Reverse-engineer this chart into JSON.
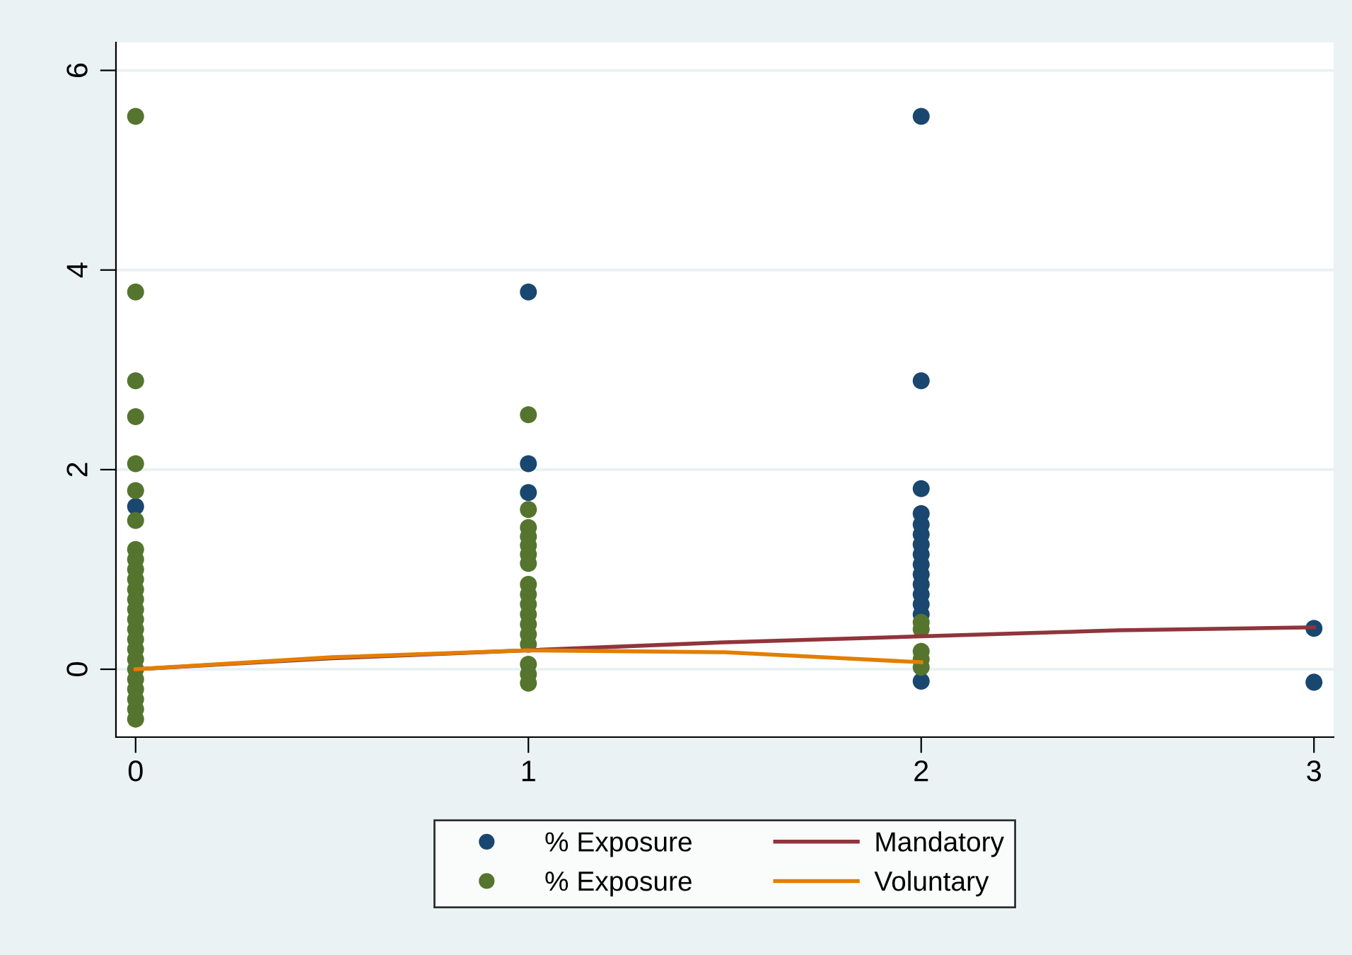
{
  "chart_data": {
    "type": "scatter",
    "xlim": [
      -0.05,
      3.05
    ],
    "ylim": [
      -0.68,
      6.28
    ],
    "xticks": [
      0,
      1,
      2,
      3
    ],
    "yticks": [
      0,
      2,
      4,
      6
    ],
    "grid": "y",
    "legend": "bottom",
    "series": [
      {
        "name": "% Exposure",
        "color": "#1a476f",
        "marker": "circle",
        "x": [
          0,
          1,
          1,
          1,
          2,
          2,
          2,
          2,
          2,
          2,
          2,
          2,
          2,
          2,
          2,
          2,
          2,
          2,
          2,
          3,
          3
        ],
        "values": [
          1.63,
          3.78,
          2.06,
          1.77,
          5.54,
          2.89,
          1.81,
          1.56,
          1.45,
          1.35,
          1.25,
          1.15,
          1.05,
          0.95,
          0.85,
          0.75,
          0.65,
          0.55,
          -0.12,
          0.41,
          -0.13
        ]
      },
      {
        "name": "% Exposure",
        "color": "#55752f",
        "marker": "circle",
        "x": [
          0,
          0,
          0,
          0,
          0,
          0,
          0,
          0,
          0,
          0,
          0,
          0,
          0,
          0,
          0,
          0,
          0,
          0,
          0,
          0,
          0,
          0,
          0,
          0,
          0,
          1,
          1,
          1,
          1,
          1,
          1,
          1,
          1,
          1,
          1,
          1,
          1,
          1,
          1,
          1,
          1,
          1,
          2,
          2,
          2,
          2,
          2
        ],
        "values": [
          5.54,
          3.78,
          2.89,
          2.53,
          2.06,
          1.79,
          1.49,
          1.2,
          1.1,
          1.0,
          0.9,
          0.8,
          0.7,
          0.6,
          0.5,
          0.4,
          0.3,
          0.2,
          0.1,
          0.0,
          -0.1,
          -0.2,
          -0.3,
          -0.4,
          -0.5,
          2.55,
          1.6,
          1.42,
          1.33,
          1.24,
          1.15,
          1.06,
          0.85,
          0.75,
          0.65,
          0.55,
          0.45,
          0.35,
          0.25,
          0.05,
          -0.05,
          -0.14,
          0.47,
          0.4,
          0.18,
          0.1,
          0.02
        ]
      },
      {
        "name": "Mandatory",
        "type": "line",
        "color": "#90353b",
        "x": [
          0,
          0.5,
          1,
          1.5,
          2,
          2.5,
          3
        ],
        "values": [
          0.0,
          0.11,
          0.19,
          0.27,
          0.33,
          0.39,
          0.42
        ]
      },
      {
        "name": "Voluntary",
        "type": "line",
        "color": "#e37e00",
        "x": [
          0,
          0.5,
          1,
          1.5,
          1.8,
          2
        ],
        "values": [
          0.0,
          0.12,
          0.19,
          0.17,
          0.11,
          0.07
        ]
      }
    ]
  }
}
